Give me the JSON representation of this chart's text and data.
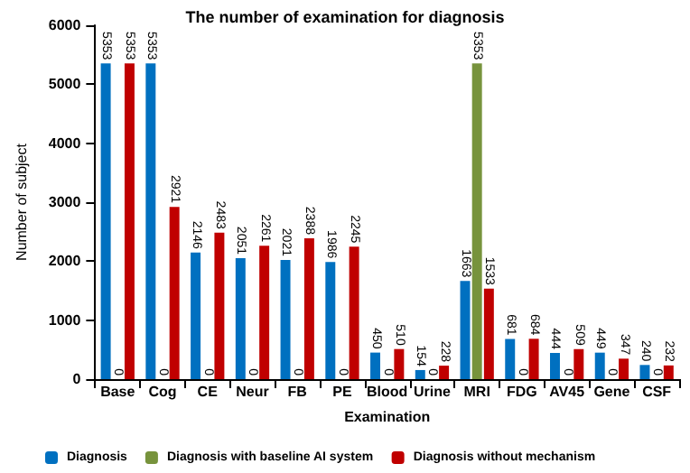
{
  "chart_data": {
    "type": "bar",
    "title": "The number of examination for diagnosis",
    "xlabel": "Examination",
    "ylabel": "Number of subject",
    "categories": [
      "Base",
      "Cog",
      "CE",
      "Neur",
      "FB",
      "PE",
      "Blood",
      "Urine",
      "MRI",
      "FDG",
      "AV45",
      "Gene",
      "CSF"
    ],
    "series": [
      {
        "name": "Diagnosis",
        "color": "#0070c0",
        "values": [
          5353,
          5353,
          2146,
          2051,
          2021,
          1986,
          450,
          154,
          1663,
          681,
          444,
          449,
          240
        ]
      },
      {
        "name": "Diagnosis with baseline AI system",
        "color": "#77933c",
        "values": [
          0,
          0,
          0,
          0,
          0,
          0,
          0,
          0,
          5353,
          0,
          0,
          0,
          0
        ]
      },
      {
        "name": "Diagnosis without mechanism",
        "color": "#c00000",
        "values": [
          5353,
          2921,
          2483,
          2261,
          2388,
          2245,
          510,
          228,
          1533,
          684,
          509,
          347,
          232
        ]
      }
    ],
    "ylim": [
      0,
      6000
    ],
    "yticks": [
      0,
      1000,
      2000,
      3000,
      4000,
      5000,
      6000
    ],
    "grid": false,
    "legend": "bottom",
    "data_labels": true
  }
}
